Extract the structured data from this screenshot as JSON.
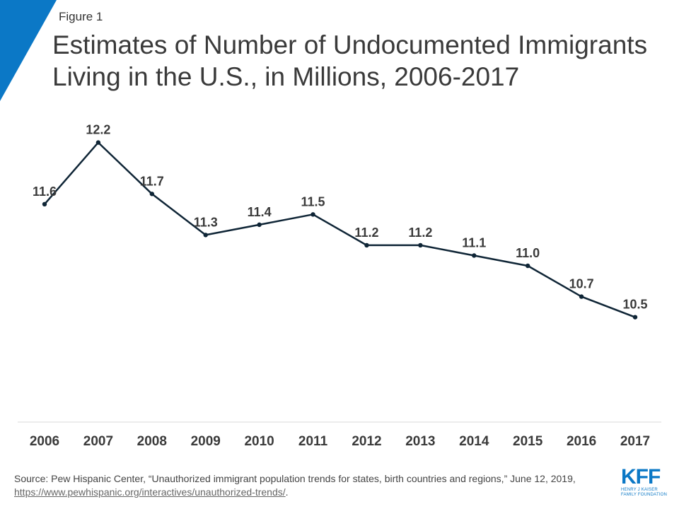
{
  "figure_label": "Figure 1",
  "title": "Estimates of Number of Undocumented Immigrants Living in the U.S., in Millions, 2006-2017",
  "chart_data": {
    "type": "line",
    "title": "Estimates of Number of Undocumented Immigrants Living in the U.S., in Millions, 2006-2017",
    "xlabel": "",
    "ylabel": "",
    "grid": false,
    "legend": "none",
    "categories": [
      "2006",
      "2007",
      "2008",
      "2009",
      "2010",
      "2011",
      "2012",
      "2013",
      "2014",
      "2015",
      "2016",
      "2017"
    ],
    "series": [
      {
        "name": "Undocumented Immigrants (Millions)",
        "values": [
          11.6,
          12.2,
          11.7,
          11.3,
          11.4,
          11.5,
          11.2,
          11.2,
          11.1,
          11.0,
          10.7,
          10.5
        ],
        "labels": [
          "11.6",
          "12.2",
          "11.7",
          "11.3",
          "11.4",
          "11.5",
          "11.2",
          "11.2",
          "11.1",
          "11.0",
          "10.7",
          "10.5"
        ]
      }
    ],
    "ylim": [
      9.5,
      12.5
    ],
    "line_color": "#0f2536"
  },
  "source": {
    "text": "Source: Pew Hispanic Center, “Unauthorized  immigrant population trends for states, birth countries and regions,” June 12, 2019, ",
    "link": "https://www.pewhispanic.org/interactives/unauthorized-trends/",
    "suffix": "."
  },
  "logo": {
    "letters": "KFF",
    "line1": "HENRY J KAISER",
    "line2": "FAMILY FOUNDATION"
  },
  "colors": {
    "accent": "#0b78c6",
    "line": "#0f2536",
    "axis": "#d9d9d9"
  }
}
